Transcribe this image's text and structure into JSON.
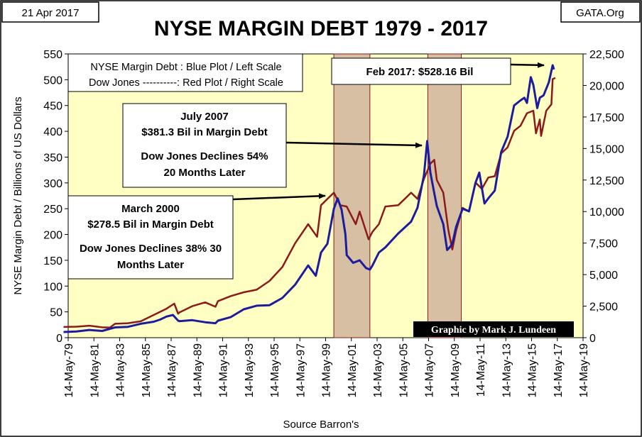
{
  "header": {
    "date_label": "21 Apr 2017",
    "source_site": "GATA.Org",
    "title": "NYSE MARGIN DEBT 1979 - 2017"
  },
  "chart_data": {
    "type": "line",
    "title": "NYSE MARGIN DEBT 1979 - 2017",
    "ylabel": "NYSE Margin Debt  /  Billions of  US  Dollars",
    "y2label": "",
    "xlabel": "Source Barron's",
    "ylim": [
      0,
      550
    ],
    "y2lim": [
      0,
      22500
    ],
    "yticks": [
      "0",
      "50",
      "100",
      "150",
      "200",
      "250",
      "300",
      "350",
      "400",
      "450",
      "500",
      "550"
    ],
    "y2ticks": [
      "0",
      "2,500",
      "5,000",
      "7,500",
      "10,000",
      "12,500",
      "15,000",
      "17,500",
      "20,000",
      "22,500"
    ],
    "xlim": [
      1979.36,
      2019.36
    ],
    "xticks": [
      "14-May-79",
      "14-May-81",
      "14-May-83",
      "14-May-85",
      "14-May-87",
      "14-May-89",
      "14-May-91",
      "14-May-93",
      "14-May-95",
      "14-May-97",
      "14-May-99",
      "14-May-01",
      "14-May-03",
      "14-May-05",
      "14-May-07",
      "14-May-09",
      "14-May-11",
      "14-May-13",
      "14-May-15",
      "14-May-17",
      "14-May-19"
    ],
    "grid": false,
    "plot_background": "#ffffc4",
    "shaded_periods": [
      [
        2000.0,
        2002.8
      ],
      [
        2007.3,
        2009.9
      ]
    ],
    "series": [
      {
        "key": "margin",
        "axis": "left",
        "color": "#1c1c9c",
        "x": [
          1979.0,
          1980,
          1981,
          1982,
          1983,
          1984,
          1985,
          1986,
          1986.5,
          1987,
          1987.5,
          1987.9,
          1988,
          1989,
          1990,
          1990.8,
          1991,
          1992,
          1993,
          1994,
          1995,
          1996,
          1997,
          1998,
          1998.6,
          1999,
          1999.5,
          2000.0,
          2000.3,
          2000.6,
          2000.9,
          2001.0,
          2001.5,
          2002.0,
          2002.5,
          2002.8,
          2003,
          2003.5,
          2004,
          2005,
          2006,
          2006.5,
          2007.0,
          2007.25,
          2007.5,
          2007.8,
          2008,
          2008.5,
          2008.8,
          2009.0,
          2009.2,
          2009.5,
          2010,
          2010.5,
          2011,
          2011.3,
          2011.7,
          2012,
          2012.5,
          2013,
          2013.5,
          2014,
          2014.5,
          2014.8,
          2015,
          2015.3,
          2015.5,
          2015.8,
          2016,
          2016.3,
          2016.7,
          2017.0,
          2017.1
        ],
        "y": [
          11,
          12,
          15,
          13,
          20,
          21,
          27,
          31,
          35,
          41,
          44,
          33,
          32,
          34,
          30,
          28,
          33,
          40,
          55,
          62,
          63,
          77,
          103,
          140,
          120,
          165,
          182,
          250,
          270,
          248,
          200,
          160,
          145,
          150,
          135,
          132,
          140,
          165,
          175,
          202,
          225,
          252,
          315,
          381,
          320,
          280,
          255,
          220,
          170,
          175,
          182,
          215,
          250,
          245,
          300,
          320,
          260,
          270,
          285,
          360,
          390,
          450,
          460,
          465,
          455,
          505,
          490,
          445,
          465,
          470,
          495,
          528,
          520
        ]
      },
      {
        "key": "dow",
        "axis": "right",
        "color": "#8c1a1a",
        "x": [
          1979.0,
          1980,
          1981,
          1982,
          1982.6,
          1983,
          1984,
          1985,
          1986,
          1987,
          1987.6,
          1987.9,
          1988,
          1989,
          1990,
          1990.8,
          1991,
          1992,
          1993,
          1994,
          1995,
          1996,
          1997,
          1998,
          1998.7,
          1999,
          1999.5,
          2000.0,
          2000.5,
          2001,
          2001.7,
          2002,
          2002.7,
          2003,
          2003.5,
          2004,
          2005,
          2006,
          2006.5,
          2007,
          2007.5,
          2007.8,
          2008,
          2008.5,
          2008.9,
          2009.2,
          2009.5,
          2010,
          2010.5,
          2011,
          2011.5,
          2012,
          2012.5,
          2013,
          2013.5,
          2014,
          2014.5,
          2015,
          2015.5,
          2015.7,
          2016,
          2016.1,
          2016.5,
          2016.9,
          2017.0,
          2017.2
        ],
        "y": [
          850,
          870,
          950,
          820,
          800,
          1100,
          1150,
          1300,
          1800,
          2300,
          2700,
          1900,
          2000,
          2500,
          2800,
          2450,
          2900,
          3300,
          3600,
          3800,
          4500,
          5600,
          7500,
          9000,
          8000,
          10500,
          11000,
          11500,
          10500,
          10400,
          9000,
          10000,
          7800,
          8400,
          9000,
          10400,
          10500,
          11500,
          11000,
          12600,
          13800,
          14100,
          12500,
          11500,
          8500,
          7000,
          8500,
          10300,
          10000,
          12300,
          11800,
          12700,
          12800,
          14600,
          15100,
          16400,
          16800,
          17800,
          18000,
          16200,
          17300,
          16000,
          18000,
          18500,
          20500,
          20600
        ]
      }
    ],
    "annotations": [
      {
        "lines": [
          "NYSE Margin Debt : Blue Plot / Left Scale",
          "Dow Jones ----------: Red Plot / Right Scale"
        ]
      },
      {
        "lines": [
          "Feb 2017: $528.16 Bil"
        ]
      },
      {
        "lines": [
          "July 2007",
          "$381.3 Bil in Margin Debt",
          "Dow Jones Declines 54%",
          "20 Months Later"
        ]
      },
      {
        "lines": [
          "March 2000",
          "$278.5 Bil in Margin Debt",
          "Dow Jones Declines 38% 30",
          "Months Later"
        ]
      },
      {
        "lines": [
          "Graphic by Mark J. Lundeen"
        ]
      }
    ]
  }
}
